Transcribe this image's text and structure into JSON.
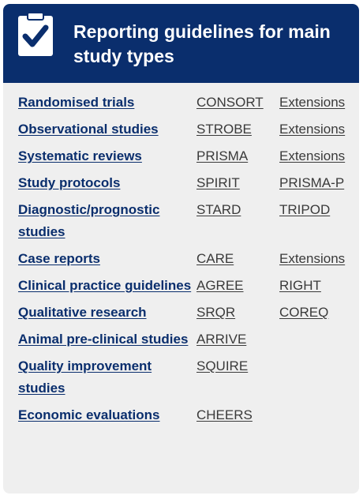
{
  "header": {
    "title": "Reporting guidelines for main study types",
    "icon": "clipboard-check-icon",
    "background": "#0a2e6d"
  },
  "rows": [
    {
      "type": "Randomised trials",
      "g1": "CONSORT",
      "g2": "Extensions"
    },
    {
      "type": "Observational studies",
      "g1": "STROBE",
      "g2": "Extensions"
    },
    {
      "type": "Systematic reviews",
      "g1": "PRISMA",
      "g2": "Extensions"
    },
    {
      "type": "Study protocols",
      "g1": "SPIRIT",
      "g2": "PRISMA-P"
    },
    {
      "type": "Diagnostic/prognostic studies",
      "g1": "STARD",
      "g2": "TRIPOD"
    },
    {
      "type": "Case reports",
      "g1": "CARE",
      "g2": "Extensions"
    },
    {
      "type": "Clinical practice guidelines",
      "g1": "AGREE",
      "g2": "RIGHT"
    },
    {
      "type": "Qualitative research",
      "g1": "SRQR",
      "g2": "COREQ"
    },
    {
      "type": "Animal pre-clinical studies",
      "g1": "ARRIVE",
      "g2": ""
    },
    {
      "type": "Quality improvement studies",
      "g1": "SQUIRE",
      "g2": ""
    },
    {
      "type": "Economic evaluations",
      "g1": "CHEERS",
      "g2": ""
    }
  ],
  "colors": {
    "type_link": "#0a2e6d",
    "guideline_link": "#3a3a3a",
    "card_background": "#efefef"
  }
}
